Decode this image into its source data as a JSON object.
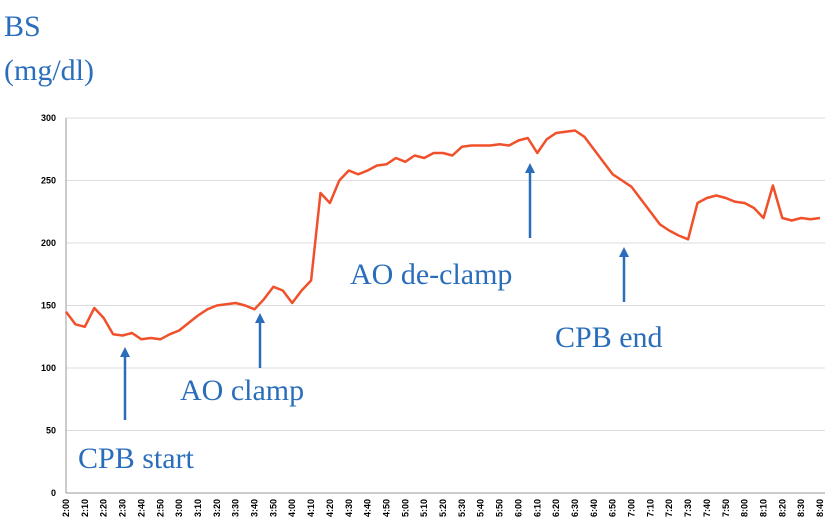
{
  "chart_data": {
    "type": "line",
    "y_label": [
      "BS",
      "(mg/dl)"
    ],
    "categories": [
      "2:00",
      null,
      "2:10",
      null,
      "2:20",
      null,
      "2:30",
      null,
      "2:40",
      null,
      "2:50",
      null,
      "3:00",
      null,
      "3:10",
      null,
      "3:20",
      null,
      "3:30",
      null,
      "3:40",
      null,
      "3:50",
      null,
      "4:00",
      null,
      "4:10",
      null,
      "4:20",
      null,
      "4:30",
      null,
      "4:40",
      null,
      "4:50",
      null,
      "5:00",
      null,
      "5:10",
      null,
      "5:20",
      null,
      "5:30",
      null,
      "5:40",
      null,
      "5:50",
      null,
      "6:00",
      null,
      "6:10",
      null,
      "6:20",
      null,
      "6:30",
      null,
      "6:40",
      null,
      "6:50",
      null,
      "7:00",
      null,
      "7:10",
      null,
      "7:20",
      null,
      "7:30",
      null,
      "7:40",
      null,
      "7:50",
      null,
      "8:00",
      null,
      "8:10",
      null,
      "8:20",
      null,
      "8:30",
      null,
      "8:40"
    ],
    "values": [
      145,
      135,
      133,
      148,
      140,
      127,
      126,
      128,
      123,
      124,
      123,
      127,
      130,
      136,
      142,
      147,
      150,
      151,
      152,
      150,
      147,
      155,
      165,
      162,
      152,
      162,
      170,
      240,
      232,
      250,
      258,
      255,
      258,
      262,
      263,
      268,
      265,
      270,
      268,
      272,
      272,
      270,
      277,
      278,
      278,
      278,
      279,
      278,
      282,
      284,
      272,
      283,
      288,
      289,
      290,
      285,
      275,
      265,
      255,
      250,
      245,
      235,
      225,
      215,
      210,
      206,
      203,
      232,
      236,
      238,
      236,
      233,
      232,
      228,
      220,
      246,
      220,
      218,
      220,
      219,
      220
    ],
    "color": "#f0502a",
    "ylim": [
      0,
      300
    ],
    "yticks": [
      0,
      50,
      100,
      150,
      200,
      250,
      300
    ],
    "grid": true,
    "annotations": [
      "CPB start",
      "AO clamp",
      "AO de-clamp",
      "CPB end"
    ]
  }
}
